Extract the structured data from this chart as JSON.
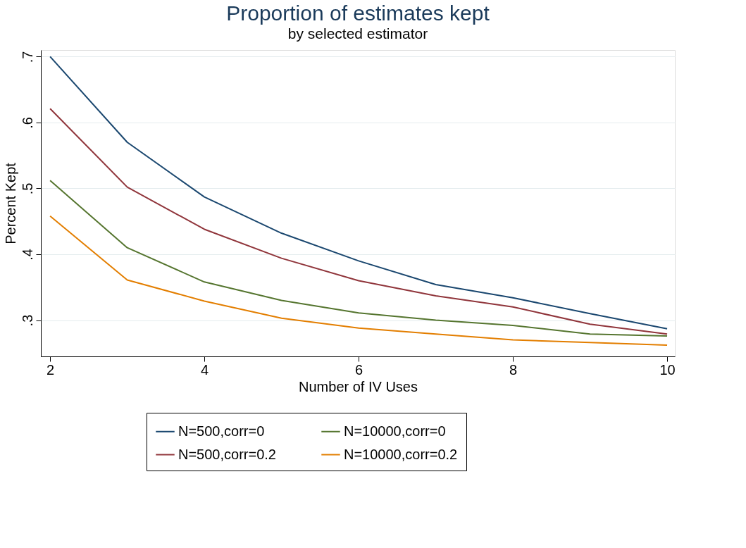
{
  "chart_data": {
    "type": "line",
    "title": "Proportion of estimates kept",
    "subtitle": "by selected estimator",
    "xlabel": "Number of IV Uses",
    "ylabel": "Percent Kept",
    "x": [
      2,
      3,
      4,
      5,
      6,
      7,
      8,
      9,
      10
    ],
    "series": [
      {
        "name": "N=500,corr=0",
        "color": "#1a476f",
        "values": [
          0.7,
          0.57,
          0.487,
          0.432,
          0.39,
          0.354,
          0.334,
          0.31,
          0.287
        ]
      },
      {
        "name": "N=500,corr=0.2",
        "color": "#90353b",
        "values": [
          0.621,
          0.502,
          0.438,
          0.394,
          0.36,
          0.337,
          0.32,
          0.294,
          0.279
        ]
      },
      {
        "name": "N=10000,corr=0",
        "color": "#55752f",
        "values": [
          0.512,
          0.41,
          0.358,
          0.33,
          0.311,
          0.3,
          0.292,
          0.279,
          0.276
        ]
      },
      {
        "name": "N=10000,corr=0.2",
        "color": "#e37e00",
        "values": [
          0.458,
          0.361,
          0.329,
          0.303,
          0.288,
          0.279,
          0.27,
          0.266,
          0.262
        ]
      }
    ],
    "xlim": [
      1.88,
      10.1
    ],
    "xticks": [
      2,
      4,
      6,
      8,
      10
    ],
    "ylim": [
      0.245,
      0.71
    ],
    "yticks": [
      {
        "value": 0.3,
        "label": ".3"
      },
      {
        "value": 0.4,
        "label": ".4"
      },
      {
        "value": 0.5,
        "label": ".5"
      },
      {
        "value": 0.6,
        "label": ".6"
      },
      {
        "value": 0.7,
        "label": ".7"
      }
    ],
    "grid": "y",
    "legend": "bottom",
    "marker": "none",
    "line_style": "solid"
  }
}
